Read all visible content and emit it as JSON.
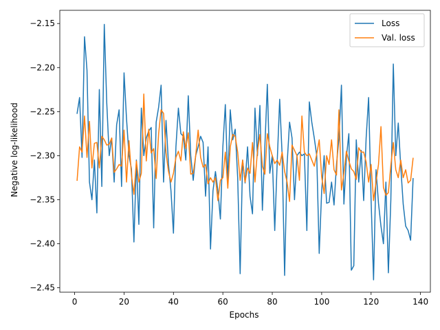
{
  "chart_data": {
    "type": "line",
    "xlabel": "Epochs",
    "ylabel": "Negative log-likelihood",
    "xlim": [
      -6,
      144
    ],
    "ylim": [
      -2.455,
      -2.135
    ],
    "xticks": [
      0,
      20,
      40,
      60,
      80,
      100,
      120,
      140
    ],
    "yticks": [
      -2.45,
      -2.4,
      -2.35,
      -2.3,
      -2.25,
      -2.2,
      -2.15
    ],
    "xtick_labels": [
      "0",
      "20",
      "40",
      "60",
      "80",
      "100",
      "120",
      "140"
    ],
    "ytick_labels": [
      "−2.45",
      "−2.40",
      "−2.35",
      "−2.30",
      "−2.25",
      "−2.20",
      "−2.15"
    ],
    "grid": false,
    "legend_position": "top-right",
    "series": [
      {
        "name": "Loss",
        "color": "#1f77b4",
        "x": [
          1,
          2,
          3,
          4,
          5,
          6,
          7,
          8,
          9,
          10,
          11,
          12,
          13,
          14,
          15,
          16,
          17,
          18,
          19,
          20,
          21,
          22,
          23,
          24,
          25,
          26,
          27,
          28,
          29,
          30,
          31,
          32,
          33,
          34,
          35,
          36,
          37,
          38,
          39,
          40,
          41,
          42,
          43,
          44,
          45,
          46,
          47,
          48,
          49,
          50,
          51,
          52,
          53,
          54,
          55,
          56,
          57,
          58,
          59,
          60,
          61,
          62,
          63,
          64,
          65,
          66,
          67,
          68,
          69,
          70,
          71,
          72,
          73,
          74,
          75,
          76,
          77,
          78,
          79,
          80,
          81,
          82,
          83,
          84,
          85,
          86,
          87,
          88,
          89,
          90,
          91,
          92,
          93,
          94,
          95,
          96,
          97,
          98,
          99,
          100,
          101,
          102,
          103,
          104,
          105,
          106,
          107,
          108,
          109,
          110,
          111,
          112,
          113,
          114,
          115,
          116,
          117,
          118,
          119,
          120,
          121,
          122,
          123,
          124,
          125,
          126,
          127,
          128,
          129,
          130,
          131,
          132,
          133,
          134,
          135,
          136,
          137
        ],
        "y": [
          -2.252,
          -2.234,
          -2.302,
          -2.165,
          -2.203,
          -2.33,
          -2.35,
          -2.305,
          -2.365,
          -2.225,
          -2.335,
          -2.151,
          -2.24,
          -2.3,
          -2.28,
          -2.33,
          -2.265,
          -2.248,
          -2.335,
          -2.206,
          -2.258,
          -2.3,
          -2.315,
          -2.398,
          -2.305,
          -2.378,
          -2.246,
          -2.3,
          -2.28,
          -2.272,
          -2.268,
          -2.382,
          -2.262,
          -2.245,
          -2.22,
          -2.33,
          -2.26,
          -2.31,
          -2.34,
          -2.388,
          -2.29,
          -2.246,
          -2.275,
          -2.278,
          -2.305,
          -2.232,
          -2.3,
          -2.328,
          -2.3,
          -2.29,
          -2.278,
          -2.285,
          -2.346,
          -2.29,
          -2.406,
          -2.34,
          -2.318,
          -2.34,
          -2.372,
          -2.29,
          -2.242,
          -2.33,
          -2.248,
          -2.282,
          -2.27,
          -2.325,
          -2.434,
          -2.305,
          -2.331,
          -2.29,
          -2.346,
          -2.366,
          -2.246,
          -2.3,
          -2.243,
          -2.362,
          -2.29,
          -2.219,
          -2.32,
          -2.3,
          -2.385,
          -2.307,
          -2.236,
          -2.3,
          -2.436,
          -2.31,
          -2.262,
          -2.28,
          -2.35,
          -2.3,
          -2.296,
          -2.3,
          -2.298,
          -2.385,
          -2.239,
          -2.262,
          -2.28,
          -2.3,
          -2.411,
          -2.34,
          -2.3,
          -2.354,
          -2.353,
          -2.33,
          -2.356,
          -2.31,
          -2.28,
          -2.22,
          -2.355,
          -2.302,
          -2.275,
          -2.43,
          -2.425,
          -2.282,
          -2.33,
          -2.294,
          -2.351,
          -2.28,
          -2.234,
          -2.35,
          -2.441,
          -2.316,
          -2.354,
          -2.38,
          -2.4,
          -2.33,
          -2.433,
          -2.35,
          -2.196,
          -2.3,
          -2.263,
          -2.312,
          -2.355,
          -2.38,
          -2.385,
          -2.396,
          -2.326
        ]
      },
      {
        "name": "Val. loss",
        "color": "#ff7f0e",
        "x": [
          1,
          2,
          3,
          4,
          5,
          6,
          7,
          8,
          9,
          10,
          11,
          12,
          13,
          14,
          15,
          16,
          17,
          18,
          19,
          20,
          21,
          22,
          23,
          24,
          25,
          26,
          27,
          28,
          29,
          30,
          31,
          32,
          33,
          34,
          35,
          36,
          37,
          38,
          39,
          40,
          41,
          42,
          43,
          44,
          45,
          46,
          47,
          48,
          49,
          50,
          51,
          52,
          53,
          54,
          55,
          56,
          57,
          58,
          59,
          60,
          61,
          62,
          63,
          64,
          65,
          66,
          67,
          68,
          69,
          70,
          71,
          72,
          73,
          74,
          75,
          76,
          77,
          78,
          79,
          80,
          81,
          82,
          83,
          84,
          85,
          86,
          87,
          88,
          89,
          90,
          91,
          92,
          93,
          94,
          95,
          96,
          97,
          98,
          99,
          100,
          101,
          102,
          103,
          104,
          105,
          106,
          107,
          108,
          109,
          110,
          111,
          112,
          113,
          114,
          115,
          116,
          117,
          118,
          119,
          120,
          121,
          122,
          123,
          124,
          125,
          126,
          127,
          128,
          129,
          130,
          131,
          132,
          133,
          134,
          135,
          136,
          137
        ],
        "y": [
          -2.328,
          -2.29,
          -2.296,
          -2.255,
          -2.302,
          -2.261,
          -2.314,
          -2.286,
          -2.285,
          -2.314,
          -2.278,
          -2.282,
          -2.288,
          -2.287,
          -2.28,
          -2.319,
          -2.315,
          -2.31,
          -2.312,
          -2.271,
          -2.33,
          -2.283,
          -2.322,
          -2.344,
          -2.306,
          -2.33,
          -2.32,
          -2.23,
          -2.306,
          -2.27,
          -2.297,
          -2.292,
          -2.326,
          -2.275,
          -2.248,
          -2.252,
          -2.297,
          -2.318,
          -2.33,
          -2.32,
          -2.302,
          -2.295,
          -2.306,
          -2.273,
          -2.292,
          -2.274,
          -2.321,
          -2.32,
          -2.3,
          -2.271,
          -2.302,
          -2.313,
          -2.31,
          -2.332,
          -2.325,
          -2.33,
          -2.325,
          -2.351,
          -2.328,
          -2.325,
          -2.296,
          -2.337,
          -2.29,
          -2.276,
          -2.278,
          -2.296,
          -2.328,
          -2.305,
          -2.33,
          -2.314,
          -2.32,
          -2.285,
          -2.33,
          -2.295,
          -2.276,
          -2.312,
          -2.321,
          -2.275,
          -2.29,
          -2.3,
          -2.309,
          -2.305,
          -2.311,
          -2.296,
          -2.318,
          -2.33,
          -2.352,
          -2.288,
          -2.294,
          -2.3,
          -2.328,
          -2.255,
          -2.296,
          -2.3,
          -2.298,
          -2.305,
          -2.312,
          -2.298,
          -2.282,
          -2.324,
          -2.343,
          -2.3,
          -2.31,
          -2.282,
          -2.316,
          -2.322,
          -2.248,
          -2.339,
          -2.32,
          -2.295,
          -2.306,
          -2.315,
          -2.318,
          -2.327,
          -2.291,
          -2.296,
          -2.296,
          -2.307,
          -2.33,
          -2.31,
          -2.351,
          -2.33,
          -2.31,
          -2.267,
          -2.336,
          -2.345,
          -2.342,
          -2.311,
          -2.285,
          -2.316,
          -2.325,
          -2.305,
          -2.325,
          -2.316,
          -2.331,
          -2.328,
          -2.303
        ]
      }
    ]
  }
}
